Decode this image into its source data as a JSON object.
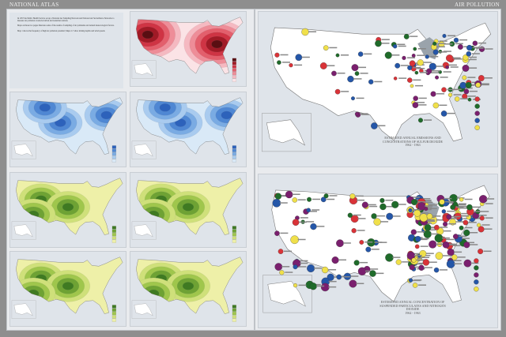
{
  "header": {
    "left": "NATIONAL ATLAS",
    "right": "AIR POLLUTION"
  },
  "intro_text": [
    "In 1957 the Public Health Service set up a National Air Sampling Network and National Air Surveillance Networks to measure air pollution at selected urban and nonurban stations.",
    "Maps on these two pages illustrate some of the results of sampling of air pollutants and related meteorological factors.",
    "Map 1 shows the frequency of high air pollution potential; Maps 2-7 show mixing depths and wind speeds."
  ],
  "map_colors": {
    "red": [
      "#fbe3e6",
      "#f5b9c1",
      "#ee8d98",
      "#e35f6c",
      "#cf3444",
      "#a01a26",
      "#5a0e12"
    ],
    "blue": [
      "#d9e9f7",
      "#a9cbef",
      "#7aabe3",
      "#4f87d3",
      "#2d62bb"
    ],
    "green": [
      "#eef0a8",
      "#cfe07a",
      "#9fc64c",
      "#6ea234",
      "#3f7a22"
    ]
  },
  "dot_colors": [
    "#d93338",
    "#1f6b2a",
    "#7a1f6e",
    "#2456a8",
    "#f0e04a"
  ],
  "maps": {
    "sulfur": {
      "title": "ESTIMATED ANNUAL EMISSIONS AND CONCENTRATIONS OF SULFUR DIOXIDE",
      "years": "1962 - 1963"
    },
    "particulates": {
      "title": "ESTIMATED ANNUAL CONCENTRATION OF SUSPENDED PARTICULATES AND NITROGEN DIOXIDE",
      "years": "1962 - 1963"
    }
  }
}
